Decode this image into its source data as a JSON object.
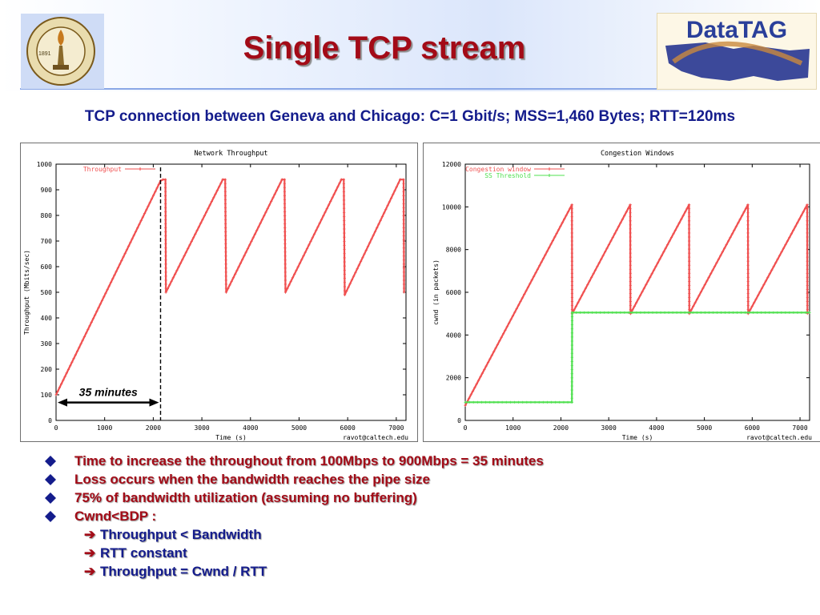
{
  "slide": {
    "title": "Single TCP stream",
    "subtitle": "TCP connection between Geneva and Chicago: C=1 Gbit/s; MSS=1,460 Bytes; RTT=120ms",
    "logos": {
      "left": "California Institute of Technology seal",
      "left_year": "1891",
      "right": "DataTAG"
    },
    "bullets": [
      "Time to increase the throughout from 100Mbps to 900Mbps = 35 minutes",
      "Loss occurs when the bandwidth reaches the pipe size",
      "75% of bandwidth utilization (assuming no buffering)",
      "Cwnd<BDP :"
    ],
    "sub_bullets": [
      "Throughput < Bandwidth",
      "RTT constant",
      "Throughput = Cwnd / RTT"
    ],
    "colors": {
      "title": "#a30b17",
      "subtitle": "#141c8c",
      "series_red": "#f05050",
      "series_green": "#50e050"
    }
  },
  "chart_data": [
    {
      "type": "line",
      "title": "Network Throughput",
      "xlabel": "Time (s)",
      "ylabel": "Throughput (Mbits/sec)",
      "credit": "ravot@caltech.edu",
      "xlim": [
        0,
        7200
      ],
      "ylim": [
        0,
        1000
      ],
      "xticks": [
        0,
        1000,
        2000,
        3000,
        4000,
        5000,
        6000,
        7000
      ],
      "yticks": [
        0,
        100,
        200,
        300,
        400,
        500,
        600,
        700,
        800,
        900,
        1000
      ],
      "legend_position": "top-left",
      "annotation": {
        "text": "35 minutes",
        "x_start": 0,
        "x_end": 2150,
        "y": 70,
        "marker_x": 2150
      },
      "series": [
        {
          "name": "Throughput",
          "color": "#f05050",
          "x": [
            0,
            2150,
            2200,
            2250,
            2260,
            3430,
            3480,
            3500,
            4650,
            4700,
            4720,
            5870,
            5920,
            5940,
            7080,
            7150,
            7160
          ],
          "y": [
            100,
            935,
            940,
            940,
            500,
            940,
            940,
            500,
            940,
            940,
            500,
            940,
            940,
            490,
            940,
            940,
            500
          ]
        }
      ]
    },
    {
      "type": "line",
      "title": "Congestion Windows",
      "xlabel": "Time (s)",
      "ylabel": "cwnd (in packets)",
      "credit": "ravot@caltech.edu",
      "xlim": [
        0,
        7200
      ],
      "ylim": [
        0,
        12000
      ],
      "xticks": [
        0,
        1000,
        2000,
        3000,
        4000,
        5000,
        6000,
        7000
      ],
      "yticks": [
        0,
        2000,
        4000,
        6000,
        8000,
        10000,
        12000
      ],
      "legend_position": "top-left",
      "series": [
        {
          "name": "Congestion window",
          "color": "#f05050",
          "x": [
            0,
            2230,
            2235,
            3450,
            3455,
            4680,
            4685,
            5910,
            5915,
            7150,
            7155
          ],
          "y": [
            700,
            10100,
            5000,
            10100,
            5000,
            10100,
            5000,
            10100,
            5000,
            10100,
            5000
          ]
        },
        {
          "name": "SS Threshold",
          "color": "#50e050",
          "x": [
            0,
            2230,
            2235,
            7200
          ],
          "y": [
            850,
            850,
            5050,
            5050
          ]
        }
      ]
    }
  ]
}
